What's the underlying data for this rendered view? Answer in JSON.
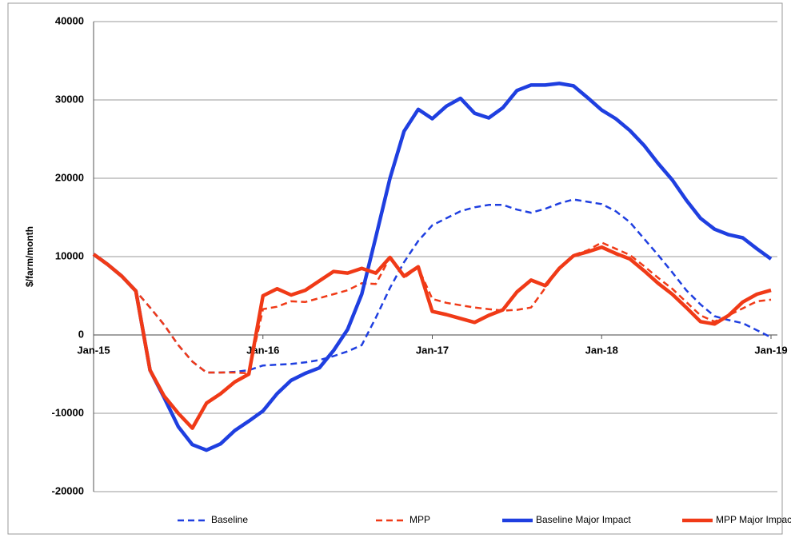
{
  "chart_data": {
    "type": "line",
    "y_label": "$/farm/month",
    "categories": [
      "Jan-15",
      null,
      null,
      null,
      null,
      null,
      null,
      null,
      null,
      null,
      null,
      null,
      "Jan-16",
      null,
      null,
      null,
      null,
      null,
      null,
      null,
      null,
      null,
      null,
      null,
      "Jan-17",
      null,
      null,
      null,
      null,
      null,
      null,
      null,
      null,
      null,
      null,
      null,
      "Jan-18",
      null,
      null,
      null,
      null,
      null,
      null,
      null,
      null,
      null,
      null,
      null,
      "Jan-19"
    ],
    "ylim": [
      -20000,
      40000
    ],
    "yticks": [
      -20000,
      -10000,
      0,
      10000,
      20000,
      30000,
      40000
    ],
    "grid": true,
    "legend": "bottom",
    "series": [
      {
        "name": "Baseline",
        "color": "#1f3fe0",
        "dash": true,
        "values": [
          10300,
          9000,
          7500,
          5600,
          3500,
          1300,
          -1300,
          -3400,
          -4800,
          -4800,
          -4700,
          -4500,
          -3900,
          -3800,
          -3700,
          -3500,
          -3200,
          -2700,
          -2100,
          -1300,
          2200,
          6000,
          9300,
          12000,
          14000,
          14900,
          15800,
          16300,
          16600,
          16600,
          16000,
          15600,
          16100,
          16800,
          17300,
          17000,
          16700,
          15800,
          14400,
          12300,
          10200,
          8000,
          5700,
          3900,
          2400,
          1900,
          1500,
          600,
          -300
        ]
      },
      {
        "name": "MPP",
        "color": "#f03a17",
        "dash": true,
        "values": [
          10300,
          9000,
          7500,
          5600,
          3500,
          1300,
          -1300,
          -3400,
          -4800,
          -4800,
          -4800,
          -4900,
          3300,
          3600,
          4300,
          4200,
          4700,
          5200,
          5700,
          6600,
          6500,
          9900,
          7300,
          8600,
          4600,
          4100,
          3800,
          3500,
          3300,
          3100,
          3200,
          3500,
          6000,
          8500,
          10200,
          10800,
          11800,
          11000,
          10200,
          8800,
          7300,
          5900,
          4200,
          2500,
          1700,
          2500,
          3400,
          4300,
          4500
        ]
      },
      {
        "name": "Baseline Major Impact",
        "color": "#1f3fe0",
        "dash": false,
        "values": [
          10300,
          9000,
          7500,
          5600,
          -4500,
          -8000,
          -11700,
          -14000,
          -14700,
          -13900,
          -12200,
          -11000,
          -9700,
          -7500,
          -5800,
          -4900,
          -4200,
          -2000,
          700,
          5200,
          12500,
          20000,
          26000,
          28800,
          27600,
          29200,
          30200,
          28300,
          27700,
          29000,
          31200,
          31900,
          31900,
          32100,
          31800,
          30300,
          28700,
          27600,
          26100,
          24200,
          21900,
          19800,
          17200,
          14900,
          13500,
          12800,
          12400,
          11000,
          9700
        ]
      },
      {
        "name": "MPP Major Impact",
        "color": "#f03a17",
        "dash": false,
        "values": [
          10300,
          9000,
          7500,
          5600,
          -4500,
          -7800,
          -10000,
          -11900,
          -8700,
          -7500,
          -6000,
          -5000,
          5000,
          5900,
          5100,
          5700,
          6900,
          8100,
          7900,
          8500,
          7900,
          9900,
          7500,
          8700,
          3000,
          2600,
          2100,
          1600,
          2500,
          3200,
          5500,
          7000,
          6300,
          8500,
          10100,
          10600,
          11200,
          10400,
          9700,
          8200,
          6600,
          5200,
          3500,
          1700,
          1400,
          2500,
          4200,
          5200,
          5700
        ]
      }
    ]
  }
}
